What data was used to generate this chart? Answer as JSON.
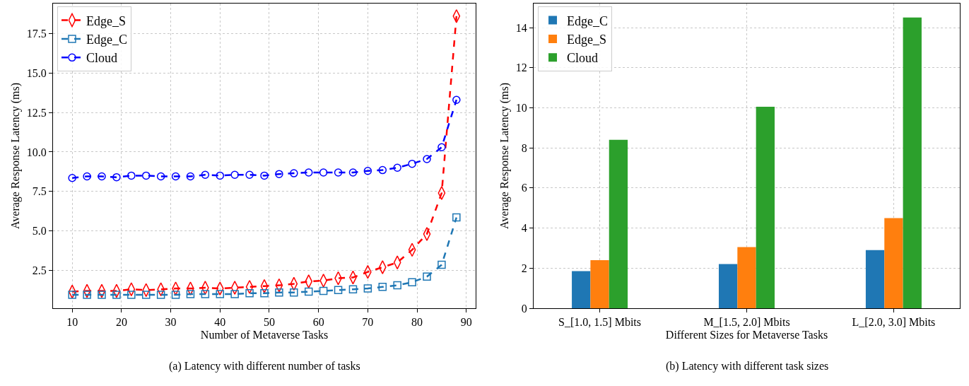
{
  "chart_data": [
    {
      "type": "line",
      "xlabel": "Number of Metaverse Tasks",
      "ylabel": "Average Response Latency (ms)",
      "x": [
        10,
        13,
        16,
        19,
        22,
        25,
        28,
        31,
        34,
        37,
        40,
        43,
        46,
        49,
        52,
        55,
        58,
        61,
        64,
        67,
        70,
        73,
        76,
        79,
        82,
        85,
        88
      ],
      "series": [
        {
          "name": "Edge_S",
          "color": "#ff0000",
          "marker": "diamond",
          "values": [
            1.15,
            1.2,
            1.2,
            1.2,
            1.3,
            1.25,
            1.3,
            1.35,
            1.35,
            1.4,
            1.35,
            1.4,
            1.45,
            1.5,
            1.55,
            1.65,
            1.8,
            1.85,
            2.0,
            2.05,
            2.4,
            2.7,
            3.0,
            3.8,
            4.8,
            7.4,
            18.6
          ]
        },
        {
          "name": "Edge_C",
          "color": "#1f77b4",
          "marker": "square",
          "values": [
            0.95,
            0.95,
            0.95,
            0.95,
            0.95,
            0.95,
            0.95,
            0.95,
            1.0,
            1.0,
            1.0,
            1.0,
            1.05,
            1.05,
            1.1,
            1.1,
            1.15,
            1.2,
            1.25,
            1.3,
            1.35,
            1.45,
            1.55,
            1.75,
            2.1,
            2.85,
            5.85
          ]
        },
        {
          "name": "Cloud",
          "color": "#0000ff",
          "marker": "circle",
          "values": [
            8.35,
            8.45,
            8.45,
            8.4,
            8.5,
            8.5,
            8.45,
            8.45,
            8.45,
            8.55,
            8.5,
            8.55,
            8.55,
            8.5,
            8.6,
            8.65,
            8.7,
            8.7,
            8.7,
            8.7,
            8.8,
            8.85,
            9.0,
            9.25,
            9.55,
            10.3,
            13.3
          ]
        }
      ],
      "xlim": [
        6.1,
        91.9
      ],
      "xticks": [
        10,
        20,
        30,
        40,
        50,
        60,
        70,
        80,
        90
      ],
      "ylim": [
        0.1,
        19.4
      ],
      "yticks": [
        {
          "value": 2.5,
          "label": "2.5"
        },
        {
          "value": 5,
          "label": "5.0"
        },
        {
          "value": 7.5,
          "label": "7.5"
        },
        {
          "value": 10,
          "label": "10.0"
        },
        {
          "value": 12.5,
          "label": "12.5"
        },
        {
          "value": 15,
          "label": "15.0"
        },
        {
          "value": 17.5,
          "label": "17.5"
        }
      ],
      "grid": true,
      "legend": "top left",
      "line_style": "dashed",
      "annotations": [
        "(a) Latency with different number of tasks"
      ]
    },
    {
      "type": "bar",
      "xlabel": "Different Sizes for Metaverse Tasks",
      "ylabel": "Average Response Latency (ms)",
      "categories": [
        "S_[1.0, 1.5] Mbits",
        "M_[1.5, 2.0] Mbits",
        "L_[2.0, 3.0] Mbits"
      ],
      "series": [
        {
          "name": "Edge_C",
          "color": "#1f77b4",
          "values": [
            1.85,
            2.2,
            2.9
          ]
        },
        {
          "name": "Edge_S",
          "color": "#ff7f0e",
          "values": [
            2.4,
            3.05,
            4.5
          ]
        },
        {
          "name": "Cloud",
          "color": "#2ca02c",
          "values": [
            8.4,
            10.05,
            14.5
          ]
        }
      ],
      "ylim": [
        0,
        15.2
      ],
      "yticks": [
        0,
        2,
        4,
        6,
        8,
        10,
        12,
        14
      ],
      "grid": true,
      "legend": "top left",
      "annotations": [
        "(b) Latency with different task sizes"
      ]
    }
  ]
}
